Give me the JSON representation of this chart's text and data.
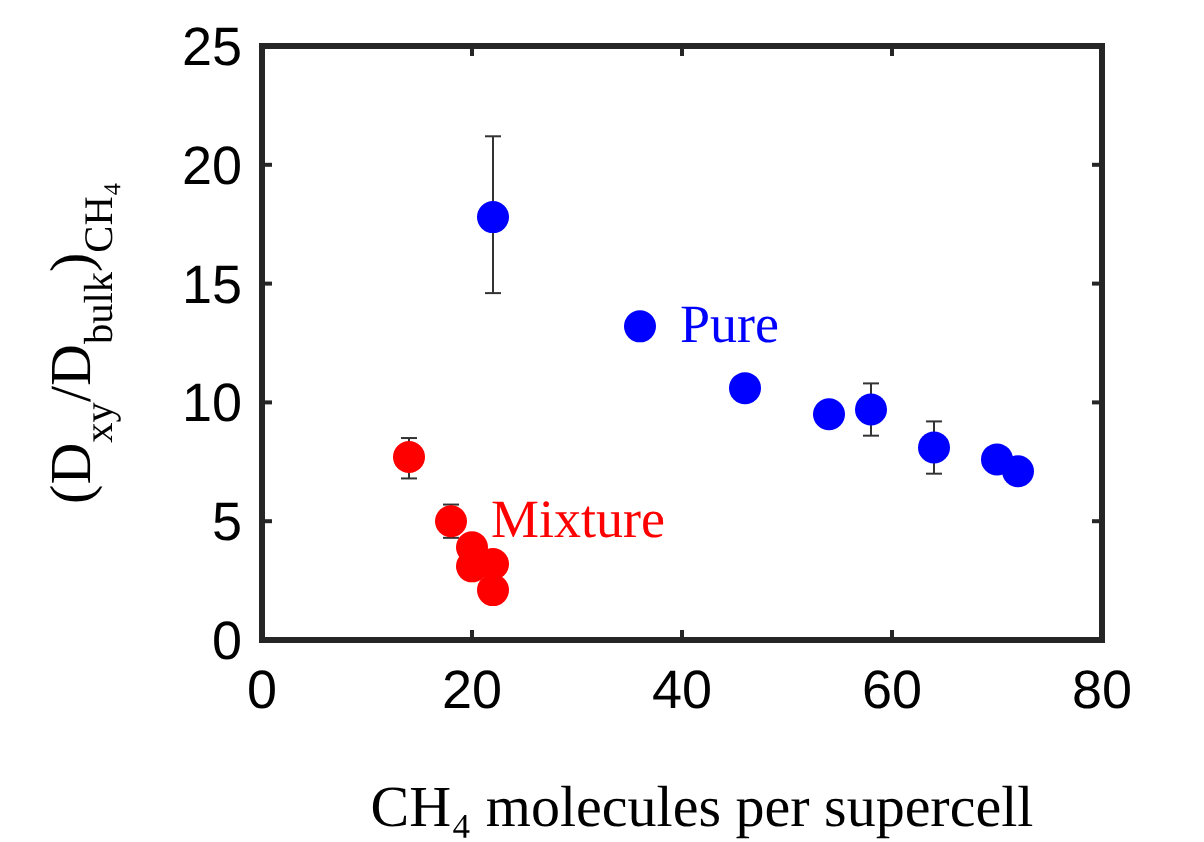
{
  "chart_data": {
    "type": "scatter",
    "xlabel": "CH₄ molecules per supercell",
    "ylabel": "(D$_{xy}$/D$_{bulk}$)$_{CH₄}$",
    "xlim": [
      0,
      80
    ],
    "xticks": [
      0,
      20,
      40,
      60,
      80
    ],
    "ylim": [
      0,
      25
    ],
    "yticks": [
      0,
      5,
      10,
      15,
      20,
      25
    ],
    "grid": false,
    "marker": "circle",
    "series": [
      {
        "name": "Pure",
        "color": "#0000ff",
        "x": [
          22,
          36,
          46,
          54,
          58,
          64,
          70,
          72
        ],
        "values": [
          17.8,
          13.2,
          10.6,
          9.5,
          9.7,
          8.1,
          7.6,
          7.1
        ],
        "errors": [
          [
            14.6,
            21.2
          ],
          null,
          null,
          null,
          [
            8.6,
            10.8
          ],
          [
            7.0,
            9.2
          ],
          null,
          null
        ]
      },
      {
        "name": "Mixture",
        "color": "#ff0000",
        "x": [
          14,
          18,
          20,
          20,
          22,
          22
        ],
        "values": [
          7.7,
          5.0,
          3.9,
          3.1,
          3.2,
          2.1
        ],
        "errors": [
          [
            6.8,
            8.5
          ],
          [
            4.3,
            5.7
          ],
          null,
          null,
          null,
          null
        ]
      }
    ]
  }
}
